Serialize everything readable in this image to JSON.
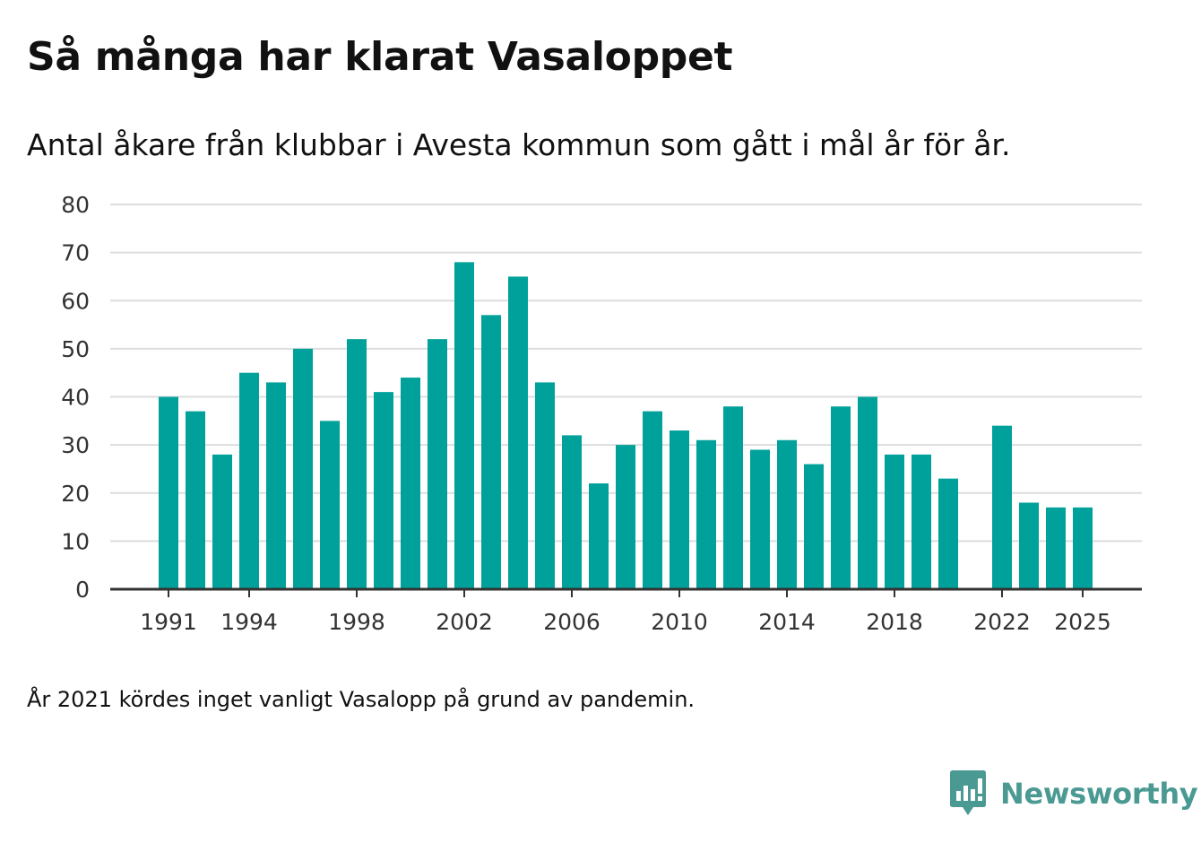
{
  "title": "Så många har klarat Vasaloppet",
  "subtitle": "Antal åkare från klubbar i Avesta kommun som gått i mål år för år.",
  "note": "År 2021 kördes inget vanligt Vasalopp på grund av pandemin.",
  "brand": {
    "name": "Newsworthy",
    "icon": "newsworthy-logo-icon",
    "color": "#4a9a93"
  },
  "colors": {
    "bar": "#00a19a",
    "grid": "#dddddd",
    "axis": "#333333"
  },
  "chart_data": {
    "type": "bar",
    "title": "Så många har klarat Vasaloppet",
    "xlabel": "",
    "ylabel": "",
    "ylim": [
      0,
      80
    ],
    "yticks": [
      0,
      10,
      20,
      30,
      40,
      50,
      60,
      70,
      80
    ],
    "xticks": [
      1991,
      1994,
      1998,
      2002,
      2006,
      2010,
      2014,
      2018,
      2022,
      2025
    ],
    "grid": true,
    "categories": [
      1991,
      1992,
      1993,
      1994,
      1995,
      1996,
      1997,
      1998,
      1999,
      2000,
      2001,
      2002,
      2003,
      2004,
      2005,
      2006,
      2007,
      2008,
      2009,
      2010,
      2011,
      2012,
      2013,
      2014,
      2015,
      2016,
      2017,
      2018,
      2019,
      2020,
      2021,
      2022,
      2023,
      2024,
      2025
    ],
    "values": [
      40,
      37,
      28,
      45,
      43,
      50,
      35,
      52,
      41,
      44,
      52,
      68,
      57,
      65,
      43,
      32,
      22,
      30,
      37,
      33,
      31,
      38,
      29,
      31,
      26,
      38,
      40,
      28,
      28,
      23,
      null,
      34,
      18,
      17,
      17
    ]
  }
}
